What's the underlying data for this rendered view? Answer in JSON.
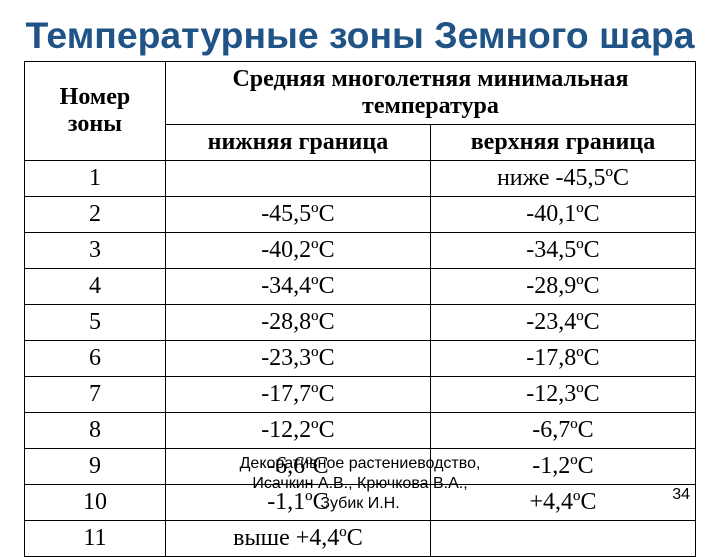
{
  "title": {
    "text": "Температурные зоны Земного шара",
    "color": "#205386",
    "fontsize_pt": 28
  },
  "table": {
    "header": {
      "zone_label": "Номер зоны",
      "temp_label": "Средняя многолетняя минимальная температура",
      "lower_label": "нижняя граница",
      "upper_label": "верхняя граница",
      "header_fontsize_pt": 18,
      "cell_fontsize_pt": 18
    },
    "rows": [
      {
        "zone": "1",
        "lower": "",
        "upper": "ниже -45,5ºС"
      },
      {
        "zone": "2",
        "lower": "-45,5ºС",
        "upper": "-40,1ºС"
      },
      {
        "zone": "3",
        "lower": "-40,2ºС",
        "upper": "-34,5ºС"
      },
      {
        "zone": "4",
        "lower": "-34,4ºС",
        "upper": "-28,9ºС"
      },
      {
        "zone": "5",
        "lower": "-28,8ºС",
        "upper": "-23,4ºС"
      },
      {
        "zone": "6",
        "lower": "-23,3ºС",
        "upper": "-17,8ºС"
      },
      {
        "zone": "7",
        "lower": "-17,7ºС",
        "upper": "-12,3ºС"
      },
      {
        "zone": "8",
        "lower": "-12,2ºС",
        "upper": "-6,7ºС"
      },
      {
        "zone": "9",
        "lower": "-6,6ºС",
        "upper": "-1,2ºС"
      },
      {
        "zone": "10",
        "lower": "-1,1ºС",
        "upper": "+4,4ºС"
      },
      {
        "zone": "11",
        "lower": "выше +4,4ºС",
        "upper": ""
      }
    ],
    "border_color": "#000000",
    "background_color": "#ffffff"
  },
  "footer": {
    "line1": "Декоративное растениеводство,",
    "line2": "Исачкин А.В., Крючкова В.А.,",
    "line3": "Зубик И.Н.",
    "fontsize_pt": 12,
    "color": "#000000"
  },
  "page_number": {
    "value": "34",
    "fontsize_pt": 12,
    "color": "#000000"
  }
}
